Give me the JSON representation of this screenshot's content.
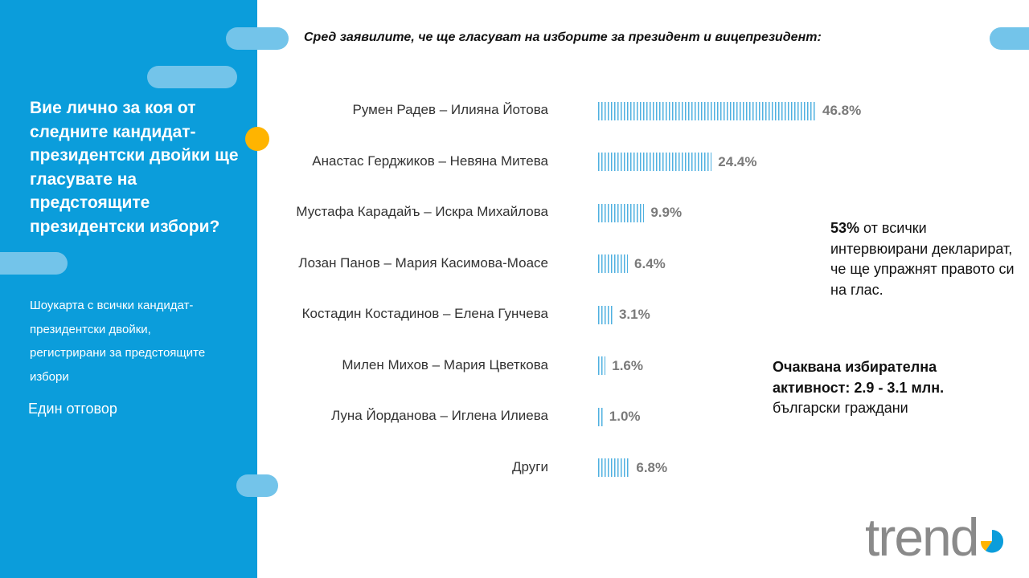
{
  "sidebar": {
    "question": "Вие лично за коя от следните кандидат-президентски двойки ще гласувате на предстоящите президентски избори?",
    "note": "Шоукарта с всички кандидат-президентски двойки, регистрирани за предстоящите избори",
    "answer_type": "Един отговор"
  },
  "subtitle": "Сред заявилите, че ще гласуват на изборите за президент и вицепрезидент:",
  "chart_data": {
    "type": "bar",
    "orientation": "horizontal",
    "title": "Сред заявилите, че ще гласуват на изборите за президент и вицепрезидент:",
    "categories": [
      "Румен Радев – Илияна Йотова",
      "Анастас Герджиков – Невяна Митева",
      "Мустафа Карадайъ – Искра Михайлова",
      "Лозан Панов – Мария Касимова-Моасе",
      "Костадин Костадинов – Елена Гунчева",
      "Милен Михов – Мария Цветкова",
      "Луна Йорданова – Иглена Илиева",
      "Други"
    ],
    "values": [
      46.8,
      24.4,
      9.9,
      6.4,
      3.1,
      1.6,
      1.0,
      6.8
    ],
    "value_labels": [
      "46.8%",
      "24.4%",
      "9.9%",
      "6.4%",
      "3.1%",
      "1.6%",
      "1.0%",
      "6.8%"
    ],
    "unit": "%",
    "bar_color": "#4fb0e0",
    "label_color": "#7a7a7a",
    "grid": false
  },
  "info": {
    "turnout_pct": "53%",
    "turnout_text": "от всички интервюирани декларират, че ще упражнят правото си на глас.",
    "expected_bold": "Очаквана избирателна активност: 2.9 - 3.1 млн.",
    "expected_rest": "български граждани"
  },
  "logo": {
    "text": "trend",
    "accent_color": "#0b9ddb",
    "secondary_color": "#ffb400",
    "text_color": "#8a8a8a"
  },
  "colors": {
    "sidebar": "#0b9ddb",
    "pill": "#73c4ea",
    "dot": "#ffb400"
  }
}
